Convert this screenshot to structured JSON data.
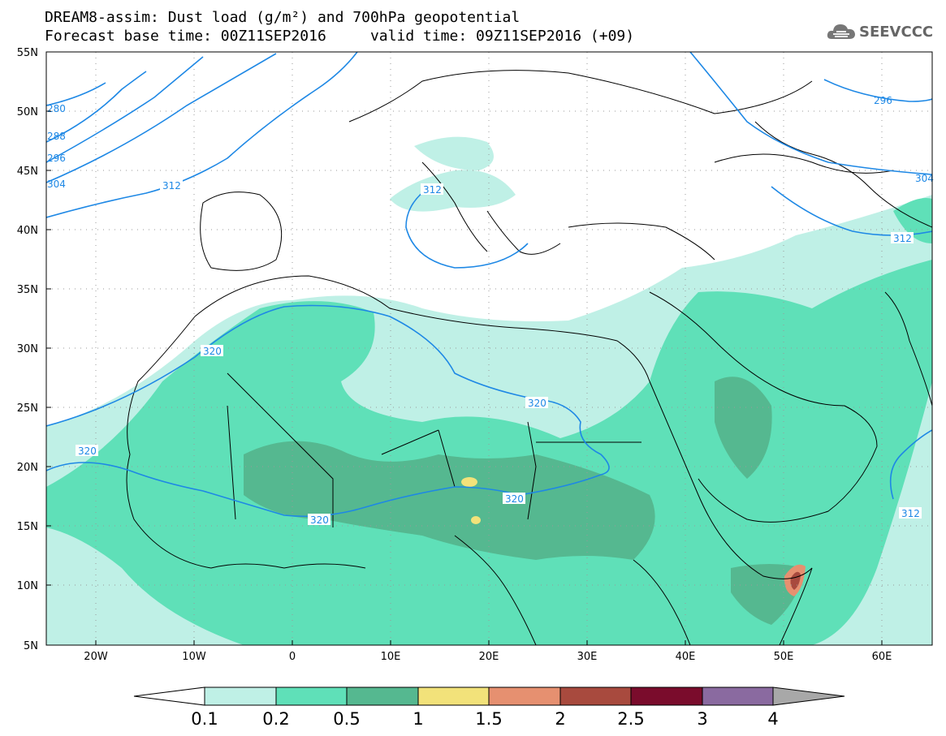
{
  "header": {
    "title_line1": "DREAM8-assim: Dust load (g/m²) and 700hPa geopotential",
    "title_line2": "Forecast base time: 00Z11SEP2016     valid time: 09Z11SEP2016 (+09)"
  },
  "logo": {
    "text": "SEEVCCC",
    "icon": "cloud-icon"
  },
  "map": {
    "lat_labels": [
      "55N",
      "50N",
      "45N",
      "40N",
      "35N",
      "30N",
      "25N",
      "20N",
      "15N",
      "10N",
      "5N"
    ],
    "lon_labels": [
      "20W",
      "10W",
      "0",
      "10E",
      "20E",
      "30E",
      "40E",
      "50E",
      "60E"
    ],
    "contour_labels": [
      "312",
      "320",
      "320",
      "320",
      "320",
      "312",
      "312",
      "312",
      "296",
      "304",
      "280",
      "288",
      "296",
      "304"
    ]
  },
  "colorbar": {
    "ticks": [
      "0.1",
      "0.2",
      "0.5",
      "1",
      "1.5",
      "2",
      "2.5",
      "3",
      "4"
    ],
    "colors": [
      "#bff0e6",
      "#5fe0b8",
      "#55b890",
      "#f2e27a",
      "#e69070",
      "#a84a3e",
      "#7a0c2c",
      "#8a6aa0"
    ],
    "ends": {
      "low": "#ffffff",
      "high": "#a8a8a8"
    }
  },
  "colors": {
    "contour": "#1e88e5",
    "border": "#000000",
    "grid": "#9a9a9a"
  }
}
